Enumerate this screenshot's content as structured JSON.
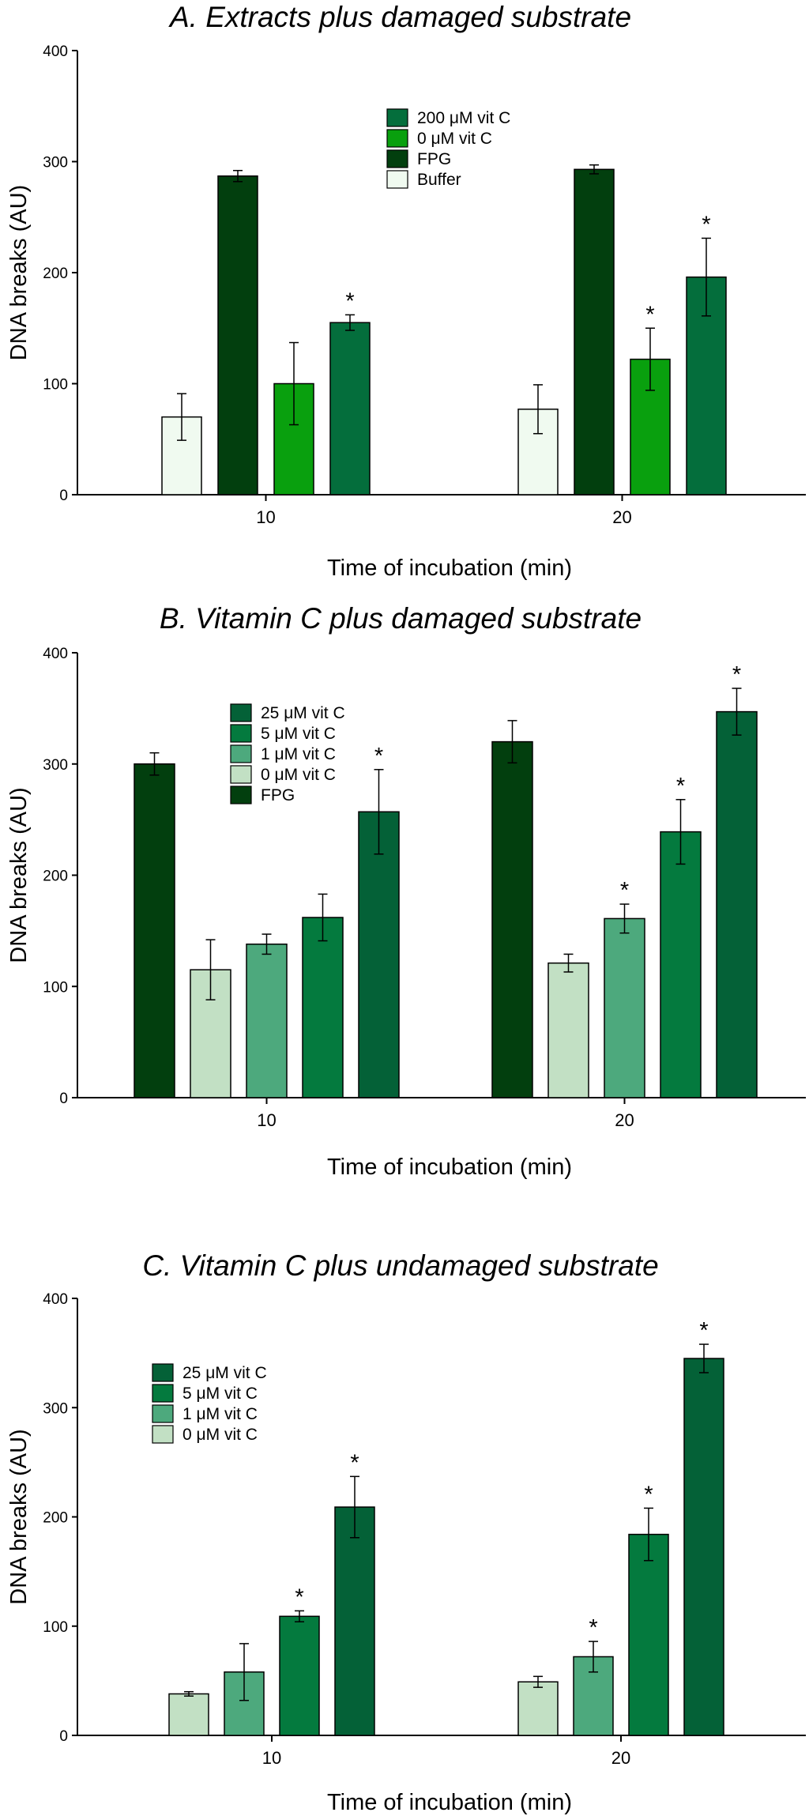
{
  "colors": {
    "buffer": "#f0faf0",
    "fpg": "#023f0e",
    "zero_vitc_bright": "#09a00e",
    "vitc_200": "#046e3c",
    "zero_vitc_pale": "#c2e0c4",
    "vitc_1": "#4da97d",
    "vitc_5": "#047a3e",
    "vitc_25": "#046137"
  },
  "chart_data": [
    {
      "type": "bar",
      "title": "A. Extracts plus damaged substrate",
      "xlabel": "Time of incubation (min)",
      "ylabel": "DNA breaks (AU)",
      "ylim": [
        0,
        400
      ],
      "yticks": [
        "0",
        "100",
        "200",
        "300",
        "400"
      ],
      "categories": [
        "10",
        "20"
      ],
      "series": [
        {
          "name": "Buffer",
          "color": "#f0faf0",
          "values": [
            70,
            77
          ],
          "errors": [
            21,
            22
          ],
          "significant": [
            false,
            false
          ]
        },
        {
          "name": "FPG",
          "color": "#023f0e",
          "values": [
            287,
            293
          ],
          "errors": [
            5,
            4
          ],
          "significant": [
            false,
            false
          ]
        },
        {
          "name": "0 μM vit C",
          "color": "#09a00e",
          "values": [
            100,
            122
          ],
          "errors": [
            37,
            28
          ],
          "significant": [
            false,
            true
          ]
        },
        {
          "name": "200 μM vit C",
          "color": "#046e3c",
          "values": [
            155,
            196
          ],
          "errors": [
            7,
            35
          ],
          "significant": [
            true,
            true
          ]
        }
      ],
      "legend_order": [
        "200 μM vit C",
        "0 μM vit C",
        "FPG",
        "Buffer"
      ],
      "legend_position": "top-center"
    },
    {
      "type": "bar",
      "title": "B. Vitamin C plus damaged substrate",
      "xlabel": "Time of incubation (min)",
      "ylabel": "DNA breaks (AU)",
      "ylim": [
        0,
        400
      ],
      "yticks": [
        "0",
        "100",
        "200",
        "300",
        "400"
      ],
      "categories": [
        "10",
        "20"
      ],
      "series": [
        {
          "name": "FPG",
          "color": "#023f0e",
          "values": [
            300,
            320
          ],
          "errors": [
            10,
            19
          ],
          "significant": [
            false,
            false
          ]
        },
        {
          "name": "0 μM vit C",
          "color": "#c2e0c4",
          "values": [
            115,
            121
          ],
          "errors": [
            27,
            8
          ],
          "significant": [
            false,
            false
          ]
        },
        {
          "name": "1 μM vit C",
          "color": "#4da97d",
          "values": [
            138,
            161
          ],
          "errors": [
            9,
            13
          ],
          "significant": [
            false,
            true
          ]
        },
        {
          "name": "5 μM vit C",
          "color": "#047a3e",
          "values": [
            162,
            239
          ],
          "errors": [
            21,
            29
          ],
          "significant": [
            false,
            true
          ]
        },
        {
          "name": "25 μM vit C",
          "color": "#046137",
          "values": [
            257,
            347
          ],
          "errors": [
            38,
            21
          ],
          "significant": [
            true,
            true
          ]
        }
      ],
      "legend_order": [
        "25 μM vit C",
        "5 μM vit C",
        "1 μM vit C",
        "0 μM vit C",
        "FPG"
      ],
      "legend_position": "top-left"
    },
    {
      "type": "bar",
      "title": "C. Vitamin C plus undamaged substrate",
      "xlabel": "Time of incubation (min)",
      "ylabel": "DNA breaks (AU)",
      "ylim": [
        0,
        400
      ],
      "yticks": [
        "0",
        "100",
        "200",
        "300",
        "400"
      ],
      "categories": [
        "10",
        "20"
      ],
      "series": [
        {
          "name": "0 μM vit C",
          "color": "#c2e0c4",
          "values": [
            38,
            49
          ],
          "errors": [
            2,
            5
          ],
          "significant": [
            false,
            false
          ]
        },
        {
          "name": "1 μM vit C",
          "color": "#4da97d",
          "values": [
            58,
            72
          ],
          "errors": [
            26,
            14
          ],
          "significant": [
            false,
            true
          ]
        },
        {
          "name": "5 μM vit C",
          "color": "#047a3e",
          "values": [
            109,
            184
          ],
          "errors": [
            5,
            24
          ],
          "significant": [
            true,
            true
          ]
        },
        {
          "name": "25 μM vit C",
          "color": "#046137",
          "values": [
            209,
            345
          ],
          "errors": [
            28,
            13
          ],
          "significant": [
            true,
            true
          ]
        }
      ],
      "legend_order": [
        "25 μM vit C",
        "5 μM vit C",
        "1 μM vit C",
        "0 μM vit C"
      ],
      "legend_position": "top-left"
    }
  ],
  "significance_marker": "*"
}
